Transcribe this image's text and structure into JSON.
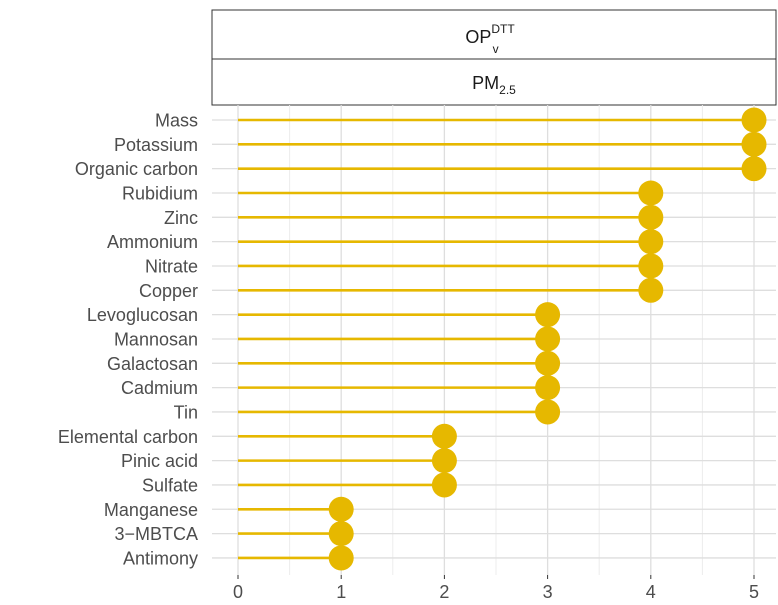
{
  "chart_data": {
    "type": "lollipop",
    "facet_top": {
      "main": "OP",
      "sup": "DTT",
      "sub": "v"
    },
    "facet_second": {
      "main": "PM",
      "sub": "2.5"
    },
    "categories": [
      "Mass",
      "Potassium",
      "Organic carbon",
      "Rubidium",
      "Zinc",
      "Ammonium",
      "Nitrate",
      "Copper",
      "Levoglucosan",
      "Mannosan",
      "Galactosan",
      "Cadmium",
      "Tin",
      "Elemental carbon",
      "Pinic acid",
      "Sulfate",
      "Manganese",
      "3−MBTCA",
      "Antimony"
    ],
    "values": [
      5,
      5,
      5,
      4,
      4,
      4,
      4,
      4,
      3,
      3,
      3,
      3,
      3,
      2,
      2,
      2,
      1,
      1,
      1
    ],
    "xlim": [
      0,
      5
    ],
    "xticks": [
      "0",
      "1",
      "2",
      "3",
      "4",
      "5"
    ],
    "xlabel": "",
    "ylabel": "",
    "grid": true,
    "legend": "none",
    "color": "#E6B800"
  }
}
